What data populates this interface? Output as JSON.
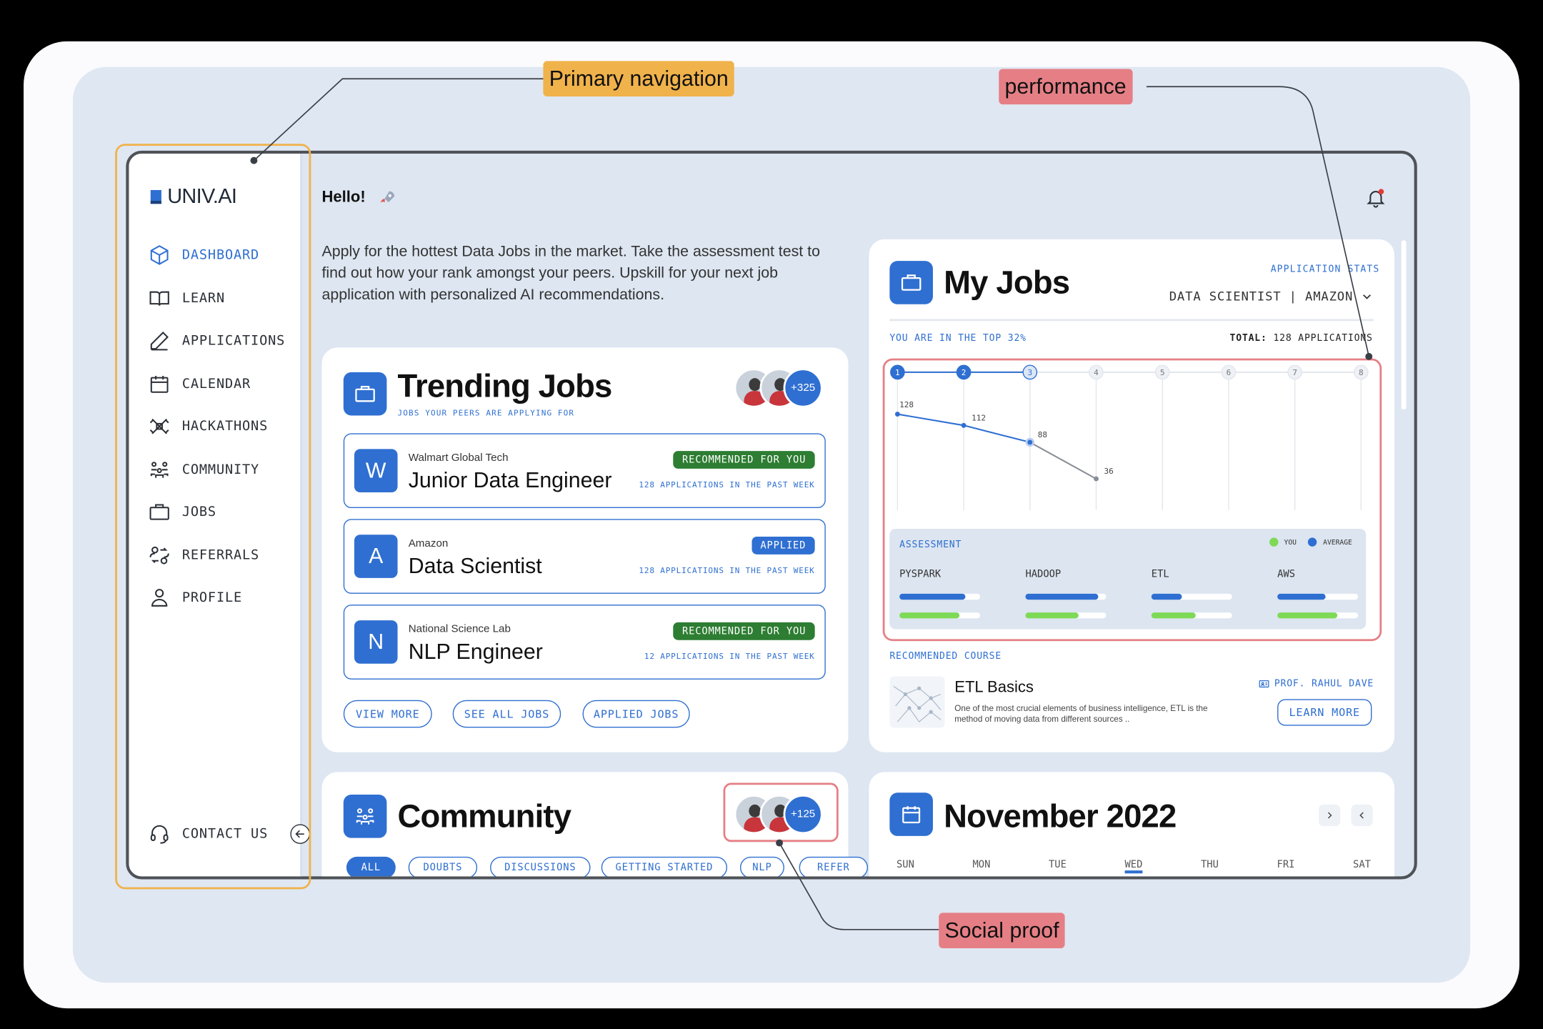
{
  "annotations": {
    "primary_navigation": "Primary navigation",
    "performance": "performance",
    "social_proof": "Social proof"
  },
  "sidebar": {
    "logo_text": "UNIV.AI",
    "items": [
      {
        "label": "DASHBOARD",
        "icon": "cube-icon"
      },
      {
        "label": "LEARN",
        "icon": "book-icon"
      },
      {
        "label": "APPLICATIONS",
        "icon": "pencil-icon"
      },
      {
        "label": "CALENDAR",
        "icon": "calendar-icon"
      },
      {
        "label": "HACKATHONS",
        "icon": "hackathon-icon"
      },
      {
        "label": "COMMUNITY",
        "icon": "people-icon"
      },
      {
        "label": "JOBS",
        "icon": "briefcase-icon"
      },
      {
        "label": "REFERRALS",
        "icon": "referral-icon"
      },
      {
        "label": "PROFILE",
        "icon": "user-icon"
      }
    ],
    "contact_label": "CONTACT US"
  },
  "header": {
    "greeting": "Hello!",
    "intro": "Apply for the hottest Data Jobs in the market. Take the assessment test to find out how your rank amongst your peers. Upskill for your next job application with personalized AI  recommendations."
  },
  "trending": {
    "title": "Trending Jobs",
    "subtitle": "JOBS YOUR PEERS ARE APPLYING FOR",
    "peer_count": "+325",
    "jobs": [
      {
        "letter": "W",
        "company": "Walmart Global Tech",
        "title": "Junior Data Engineer",
        "badge": "RECOMMENDED FOR YOU",
        "apps": "128 APPLICATIONS IN THE PAST WEEK"
      },
      {
        "letter": "A",
        "company": "Amazon",
        "title": "Data Scientist",
        "badge": "APPLIED",
        "apps": "128 APPLICATIONS IN THE PAST WEEK"
      },
      {
        "letter": "N",
        "company": "National Science Lab",
        "title": "NLP Engineer",
        "badge": "RECOMMENDED FOR YOU",
        "apps": "12 APPLICATIONS IN THE PAST WEEK"
      }
    ],
    "buttons": [
      "VIEW MORE",
      "SEE ALL JOBS",
      "APPLIED JOBS"
    ]
  },
  "myjobs": {
    "title": "My Jobs",
    "stats_label": "APPLICATION STATS",
    "role_select": "DATA SCIENTIST | AMAZON",
    "rank_text": "YOU ARE IN THE TOP 32%",
    "total_label": "TOTAL:",
    "total_value": "128 APPLICATIONS",
    "steps": [
      "1",
      "2",
      "3",
      "4",
      "5",
      "6",
      "7",
      "8"
    ],
    "assessment_label": "ASSESSMENT",
    "legend_you": "YOU",
    "legend_avg": "AVERAGE",
    "skills": [
      {
        "name": "PYSPARK",
        "average": 0.82,
        "you": 0.74
      },
      {
        "name": "HADOOP",
        "average": 0.9,
        "you": 0.66
      },
      {
        "name": "ETL",
        "average": 0.38,
        "you": 0.55
      },
      {
        "name": "AWS",
        "average": 0.6,
        "you": 0.74
      }
    ],
    "recommended_label": "RECOMMENDED COURSE",
    "course_title": "ETL Basics",
    "course_desc": "One of the most crucial elements of business intelligence, ETL is the method of moving data from different sources ..",
    "course_prof": "PROF. RAHUL DAVE",
    "learn_more": "LEARN MORE"
  },
  "chart_data": {
    "type": "line",
    "x": [
      1,
      2,
      3,
      4
    ],
    "series": [
      {
        "values": [
          128,
          112,
          88,
          36
        ]
      }
    ],
    "data_labels": [
      "128",
      "112",
      "88",
      "36"
    ],
    "x_ticks": [
      "1",
      "2",
      "3",
      "4",
      "5",
      "6",
      "7",
      "8"
    ],
    "ylim": [
      0,
      140
    ],
    "grid": "vertical"
  },
  "community": {
    "title": "Community",
    "peer_count": "+125",
    "tabs": [
      "ALL",
      "DOUBTS",
      "DISCUSSIONS",
      "GETTING STARTED",
      "NLP",
      "REFER"
    ]
  },
  "calendar": {
    "title": "November 2022",
    "days": [
      "SUN",
      "MON",
      "TUE",
      "WED",
      "THU",
      "FRI",
      "SAT"
    ]
  },
  "colors": {
    "accent": "#2f6fd1",
    "green": "#2d7d32",
    "nav_highlight": "#f0b24a",
    "performance_highlight": "#e57f85",
    "you_bar": "#7ed957"
  }
}
